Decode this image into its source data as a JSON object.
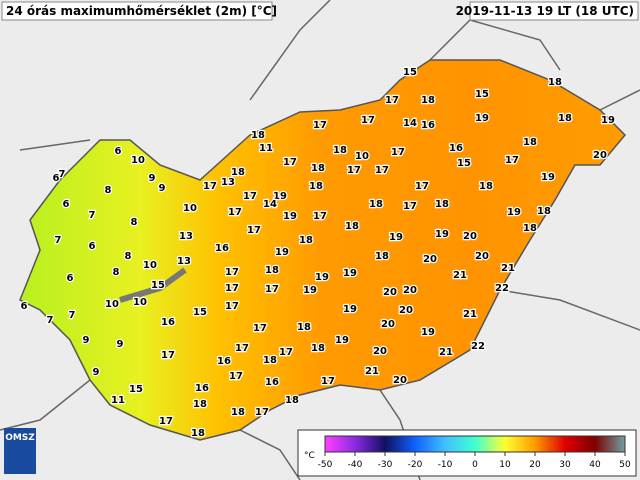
{
  "title": "24 órás maximumhőmérséklet (2m) [°C]",
  "timestamp": "2019-11-13 19 LT (18 UTC)",
  "logo": "OMSZ",
  "stations": [
    15,
    18,
    17,
    18,
    15,
    17,
    17,
    14,
    16,
    19,
    18,
    19,
    18,
    11,
    18,
    10,
    17,
    16,
    18,
    20,
    17,
    18,
    17,
    17,
    15,
    17,
    18,
    13,
    17,
    17,
    19,
    18,
    17,
    18,
    19,
    14,
    19,
    17,
    17,
    18,
    17,
    18,
    19,
    18,
    10,
    17,
    18,
    19,
    19,
    20,
    18,
    13,
    16,
    19,
    18,
    18,
    20,
    20,
    21,
    21,
    13,
    10,
    17,
    18,
    19,
    19,
    17,
    19,
    17,
    15,
    20,
    20,
    22,
    10,
    10,
    15,
    17,
    19,
    20,
    21,
    16,
    17,
    18,
    20,
    19,
    19,
    17,
    17,
    18,
    20,
    21,
    22,
    17,
    16,
    18,
    17,
    16,
    17,
    21,
    20,
    15,
    16,
    18,
    18,
    18,
    17,
    11,
    17,
    18,
    6,
    10,
    9,
    7,
    6,
    8,
    9,
    6,
    7,
    8,
    7,
    6,
    8,
    6,
    8,
    6,
    7,
    7,
    9,
    9,
    9
  ],
  "legend": {
    "unit": "°C",
    "ticks": [
      -50,
      -40,
      -30,
      -20,
      -10,
      0,
      10,
      20,
      30,
      40,
      50
    ],
    "colors": [
      "#ff40ff",
      "#8a2be2",
      "#101060",
      "#1060ff",
      "#40c0ff",
      "#40ffd0",
      "#ffff30",
      "#ff9a00",
      "#e00000",
      "#800000",
      "#70a0a0"
    ]
  }
}
